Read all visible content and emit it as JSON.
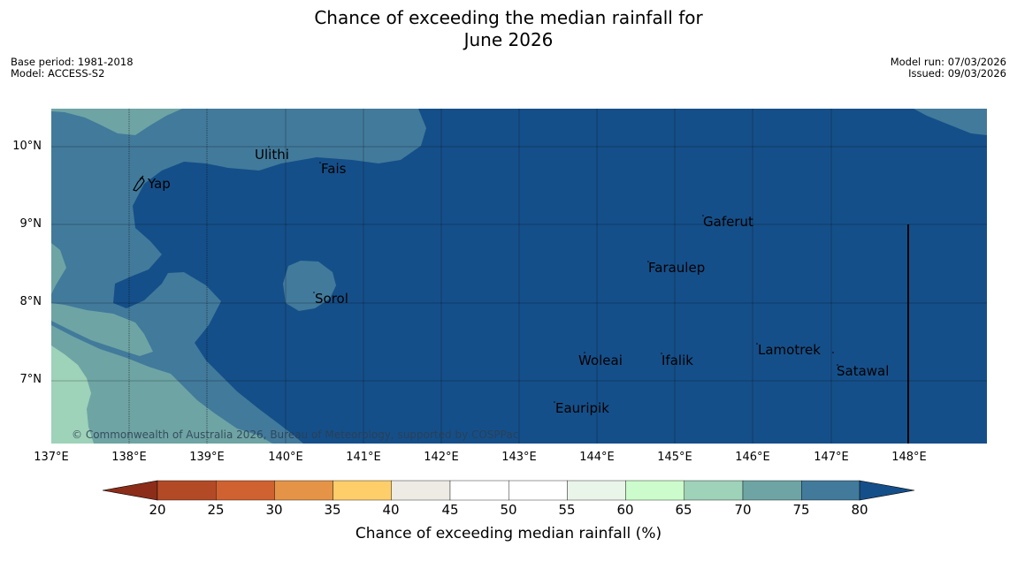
{
  "title": {
    "line1": "Chance of exceeding the median rainfall for",
    "line2": "June 2026"
  },
  "meta": {
    "base_period": "Base period: 1981-2018",
    "model": "Model: ACCESS-S2",
    "model_run": "Model run: 07/03/2026",
    "issued": "Issued: 09/03/2026"
  },
  "axes": {
    "lat_labels": [
      "10°N",
      "9°N",
      "8°N",
      "7°N"
    ],
    "lon_labels": [
      "137°E",
      "138°E",
      "139°E",
      "140°E",
      "141°E",
      "142°E",
      "143°E",
      "144°E",
      "145°E",
      "146°E",
      "147°E",
      "148°E"
    ]
  },
  "places": {
    "ulithi": "Ulithi",
    "fais": "Fais",
    "yap": "Yap",
    "gaferut": "Gaferut",
    "faraulep": "Faraulep",
    "sorol": "Sorol",
    "lamotrek": "Lamotrek",
    "woleai": "Woleai",
    "ifalik": "Ifalik",
    "satawal": "Satawal",
    "eauripik": "Eauripik"
  },
  "copyright": "© Commonwealth of Australia 2026, Bureau of Meteorology, supported by COSPPac",
  "colorbar": {
    "ticks": [
      "20",
      "25",
      "30",
      "35",
      "40",
      "45",
      "50",
      "55",
      "60",
      "65",
      "70",
      "75",
      "80"
    ],
    "label": "Chance of exceeding median rainfall (%)",
    "colors": {
      "below_20": "#8c2d1a",
      "c20_25": "#b34a26",
      "c25_30": "#d06130",
      "c30_35": "#e59447",
      "c35_40": "#fdce6a",
      "c40_45": "#eeebe5",
      "c45_50": "#ffffff",
      "c50_55": "#ffffff",
      "c55_60": "#eaf5ea",
      "c60_65": "#ccfccb",
      "c65_70": "#9ed2b9",
      "c70_75": "#6ea4a4",
      "c75_80": "#427a9b",
      "above_80": "#154f89"
    }
  }
}
